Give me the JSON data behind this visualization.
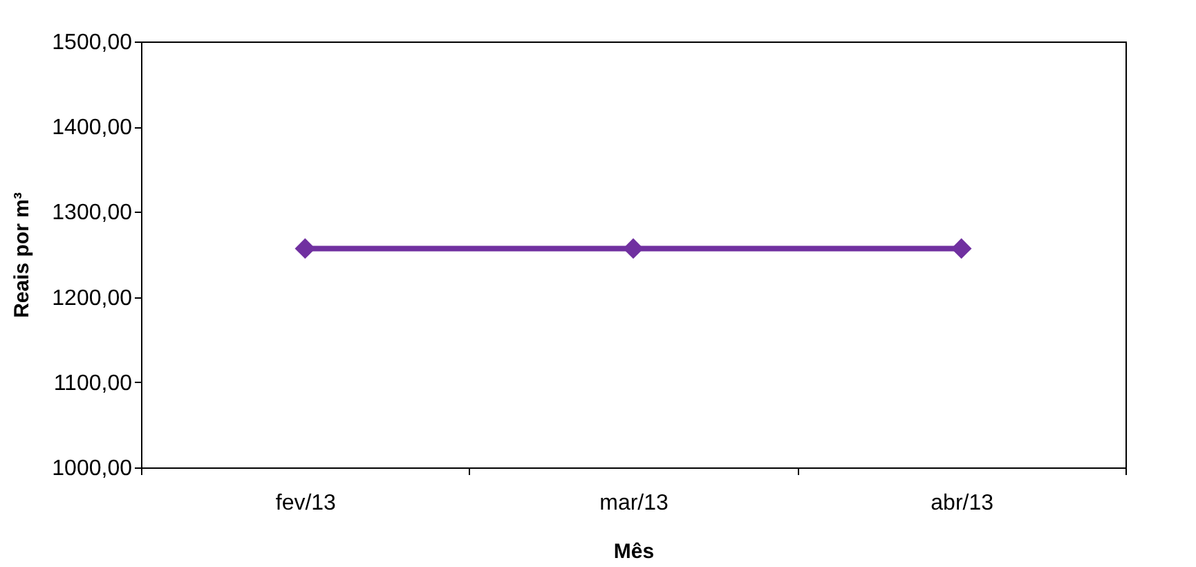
{
  "chart_data": {
    "type": "line",
    "xlabel": "Mês",
    "ylabel": "Reais por  m³",
    "categories": [
      "fev/13",
      "mar/13",
      "abr/13"
    ],
    "series": [
      {
        "color": "#7030a0",
        "values": [
          1257,
          1257,
          1257
        ]
      }
    ],
    "ylim": [
      1000,
      1500
    ],
    "yticks": [
      {
        "value": 1000,
        "label": "1000,00"
      },
      {
        "value": 1100,
        "label": "1100,00"
      },
      {
        "value": 1200,
        "label": "1200,00"
      },
      {
        "value": 1300,
        "label": "1300,00"
      },
      {
        "value": 1400,
        "label": "1400,00"
      },
      {
        "value": 1500,
        "label": "1500,00"
      }
    ],
    "marker": "diamond",
    "line_style": "solid",
    "grid": false
  }
}
